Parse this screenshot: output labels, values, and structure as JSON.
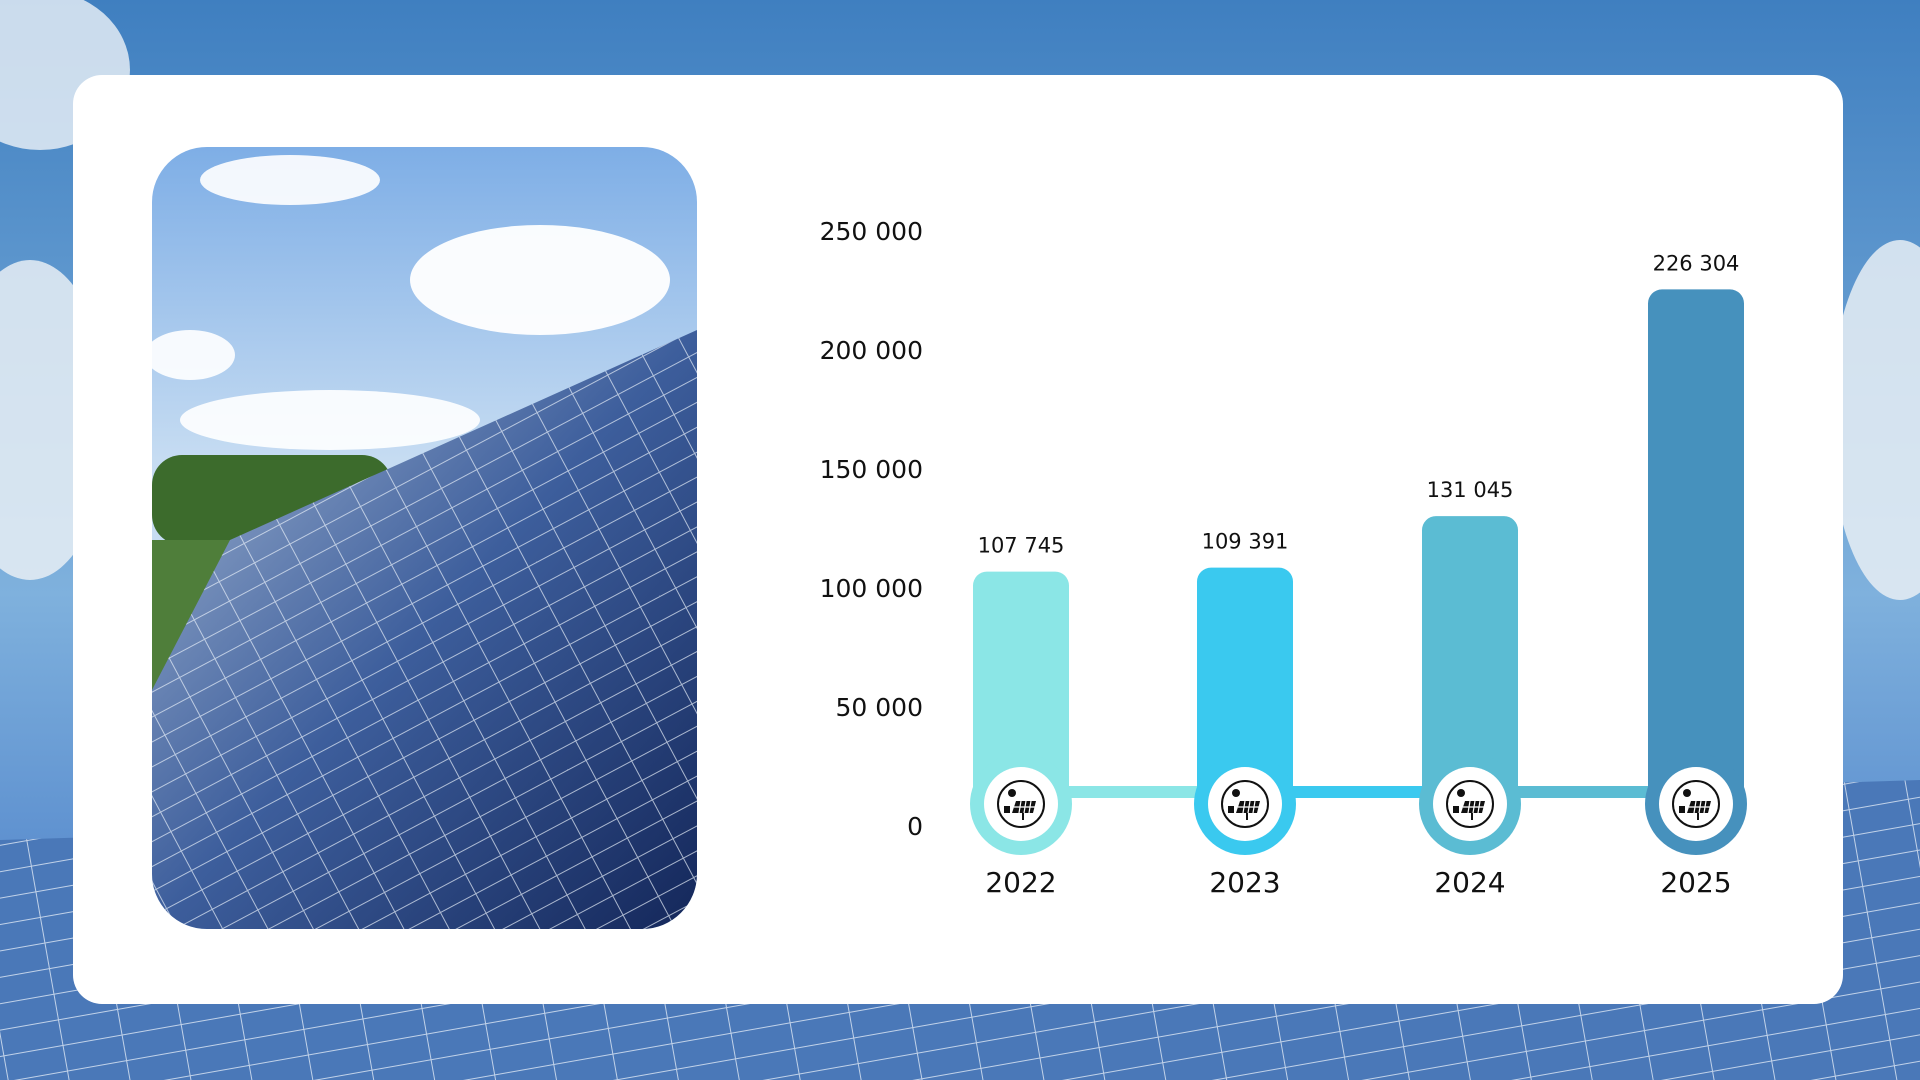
{
  "chart_data": {
    "type": "bar",
    "categories": [
      "2022",
      "2023",
      "2024",
      "2025"
    ],
    "values": [
      107745,
      109391,
      131045,
      226304
    ],
    "value_labels": [
      "107 745",
      "109 391",
      "131 045",
      "226 304"
    ],
    "colors": [
      "#8be6e6",
      "#3ac9ef",
      "#5bbcd3",
      "#4691bd"
    ],
    "ylim": [
      0,
      250000
    ],
    "yticks": [
      0,
      {
        "value": 50000,
        "label": "50 000"
      },
      {
        "value": 100000,
        "label": "100 000"
      },
      {
        "value": 150000,
        "label": "150 000"
      },
      {
        "value": 200000,
        "label": "200 000"
      },
      {
        "value": 250000,
        "label": "250 000"
      }
    ],
    "grid": false
  }
}
